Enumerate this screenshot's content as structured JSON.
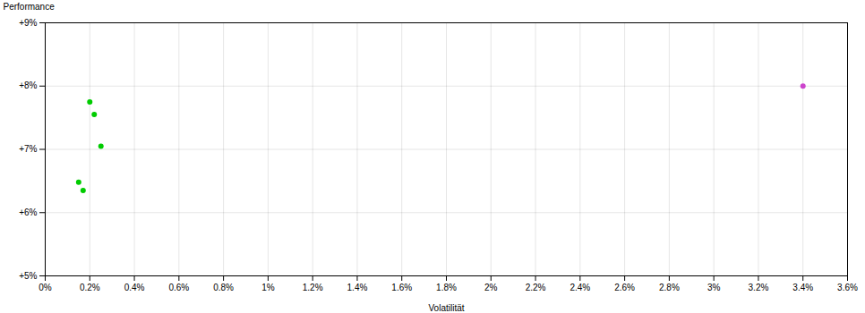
{
  "chart_data": {
    "type": "scatter",
    "xlabel": "Volatilität",
    "ylabel": "Performance",
    "xlim": [
      0.0,
      0.036
    ],
    "ylim": [
      0.05,
      0.09
    ],
    "xticks": [
      {
        "value": 0.0,
        "label": "0%"
      },
      {
        "value": 0.002,
        "label": "0.2%"
      },
      {
        "value": 0.004,
        "label": "0.4%"
      },
      {
        "value": 0.006,
        "label": "0.6%"
      },
      {
        "value": 0.008,
        "label": "0.8%"
      },
      {
        "value": 0.01,
        "label": "1%"
      },
      {
        "value": 0.012,
        "label": "1.2%"
      },
      {
        "value": 0.014,
        "label": "1.4%"
      },
      {
        "value": 0.016,
        "label": "1.6%"
      },
      {
        "value": 0.018,
        "label": "1.8%"
      },
      {
        "value": 0.02,
        "label": "2%"
      },
      {
        "value": 0.022,
        "label": "2.2%"
      },
      {
        "value": 0.024,
        "label": "2.4%"
      },
      {
        "value": 0.026,
        "label": "2.6%"
      },
      {
        "value": 0.028,
        "label": "2.8%"
      },
      {
        "value": 0.03,
        "label": "3%"
      },
      {
        "value": 0.032,
        "label": "3.2%"
      },
      {
        "value": 0.034,
        "label": "3.4%"
      },
      {
        "value": 0.036,
        "label": "3.6%"
      }
    ],
    "yticks": [
      {
        "value": 0.05,
        "label": "+5%"
      },
      {
        "value": 0.06,
        "label": "+6%"
      },
      {
        "value": 0.07,
        "label": "+7%"
      },
      {
        "value": 0.08,
        "label": "+8%"
      },
      {
        "value": 0.09,
        "label": "+9%"
      }
    ],
    "grid": true,
    "series": [
      {
        "color": "#00cc00",
        "x": [
          0.002,
          0.0022,
          0.0025,
          0.0015,
          0.0017
        ],
        "values": [
          0.0775,
          0.0755,
          0.0705,
          0.0648,
          0.0635
        ]
      },
      {
        "color": "#cc44cc",
        "x": [
          0.034
        ],
        "values": [
          0.08
        ]
      }
    ]
  }
}
